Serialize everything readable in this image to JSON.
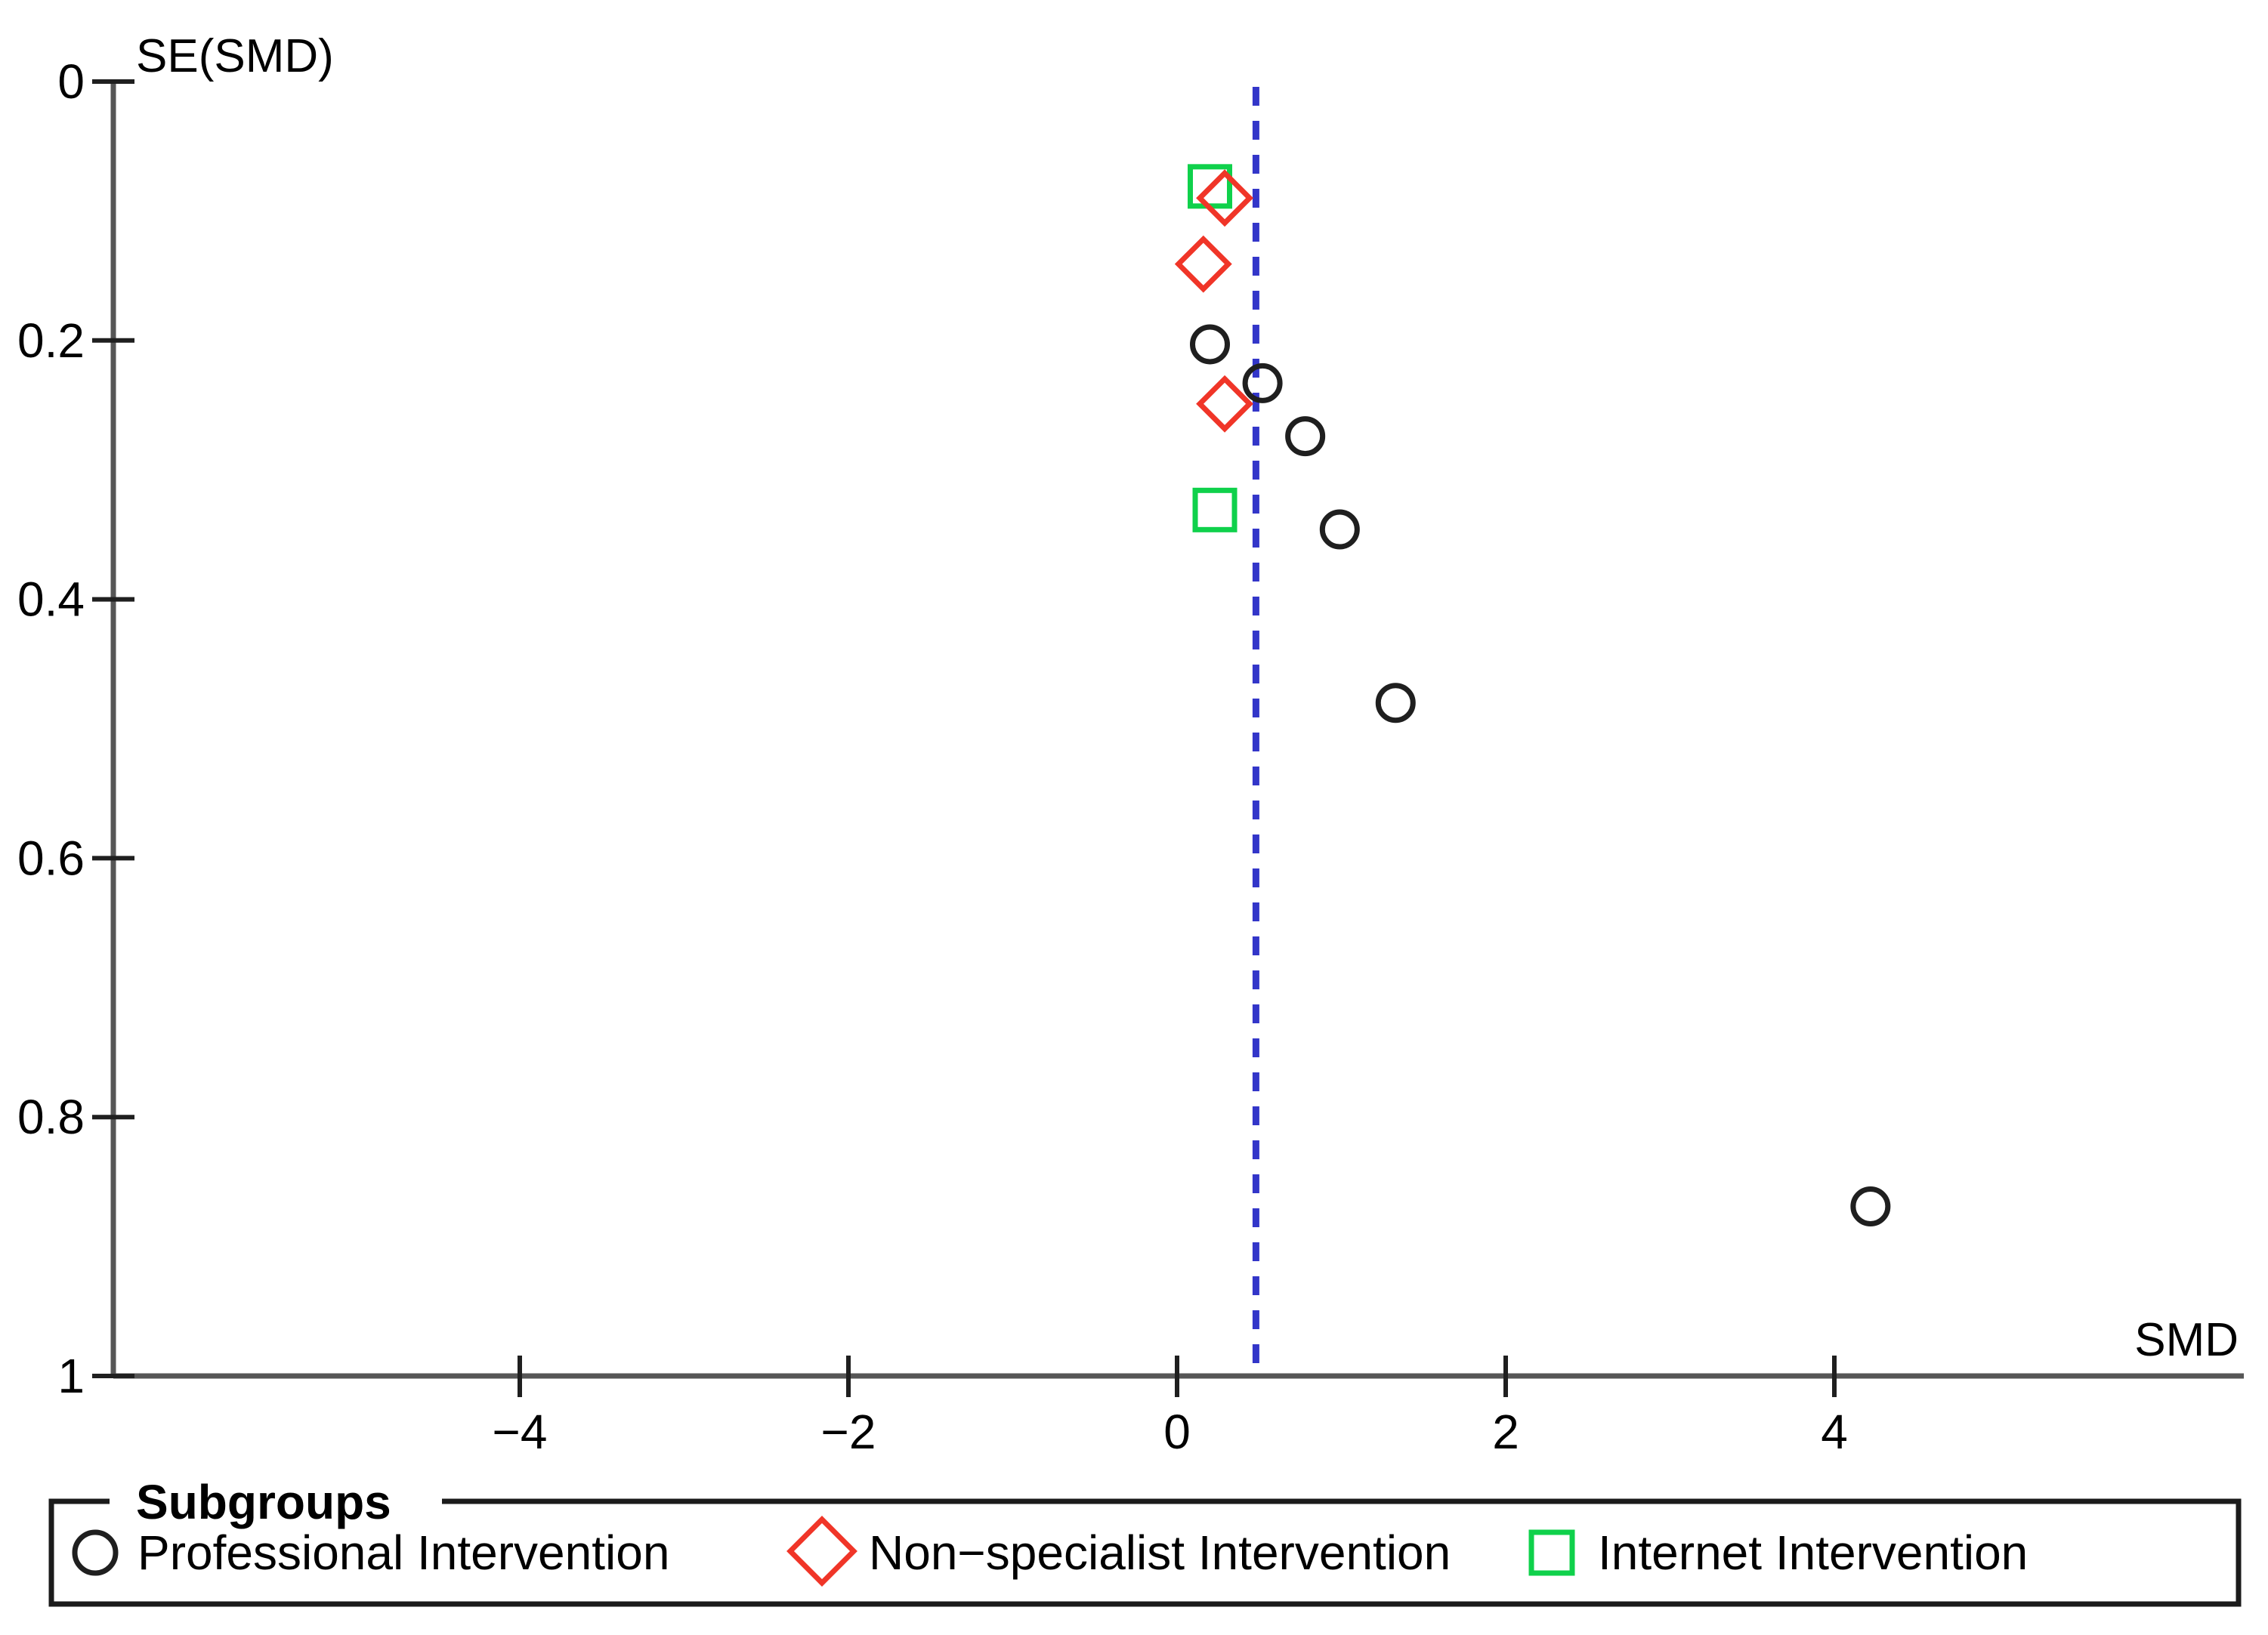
{
  "figure": {
    "background": "#ffffff",
    "axis_color": "#565656",
    "tick_color": "#1f1f1f",
    "text_color": "#000000"
  },
  "chart_data": {
    "type": "scatter",
    "title": "",
    "xlabel": "SMD",
    "ylabel": "SE(SMD)",
    "xlim": [
      -6.5,
      6.5
    ],
    "ylim": [
      0,
      1
    ],
    "y_axis_inverted": true,
    "grid": false,
    "x_ticks": [
      {
        "value": -4,
        "label": "−4"
      },
      {
        "value": -2,
        "label": "−2"
      },
      {
        "value": 0,
        "label": "0"
      },
      {
        "value": 2,
        "label": "2"
      },
      {
        "value": 4,
        "label": "4"
      }
    ],
    "y_ticks": [
      {
        "value": 0,
        "label": "0"
      },
      {
        "value": 0.2,
        "label": "0.2"
      },
      {
        "value": 0.4,
        "label": "0.4"
      },
      {
        "value": 0.6,
        "label": "0.6"
      },
      {
        "value": 0.8,
        "label": "0.8"
      },
      {
        "value": 1,
        "label": "1"
      }
    ],
    "reference_line": {
      "x": 0.48,
      "style": "dashed",
      "color": "#3336c9",
      "orientation": "vertical"
    },
    "series": [
      {
        "name": "Professional Intervention",
        "marker": "circle",
        "color": "#1f1f1f",
        "points": [
          {
            "x": 0.2,
            "y": 0.203
          },
          {
            "x": 0.52,
            "y": 0.233
          },
          {
            "x": 0.78,
            "y": 0.274
          },
          {
            "x": 0.99,
            "y": 0.346
          },
          {
            "x": 1.33,
            "y": 0.48
          },
          {
            "x": 4.22,
            "y": 0.869
          }
        ]
      },
      {
        "name": "Non−specialist Intervention",
        "marker": "diamond",
        "color": "#f03528",
        "points": [
          {
            "x": 0.29,
            "y": 0.09
          },
          {
            "x": 0.16,
            "y": 0.141
          },
          {
            "x": 0.29,
            "y": 0.249
          }
        ]
      },
      {
        "name": "Internet Intervention",
        "marker": "square",
        "color": "#0fd14b",
        "points": [
          {
            "x": 0.2,
            "y": 0.081
          },
          {
            "x": 0.23,
            "y": 0.331
          }
        ]
      }
    ],
    "legend": {
      "title": "Subgroups",
      "position": "bottom"
    }
  }
}
